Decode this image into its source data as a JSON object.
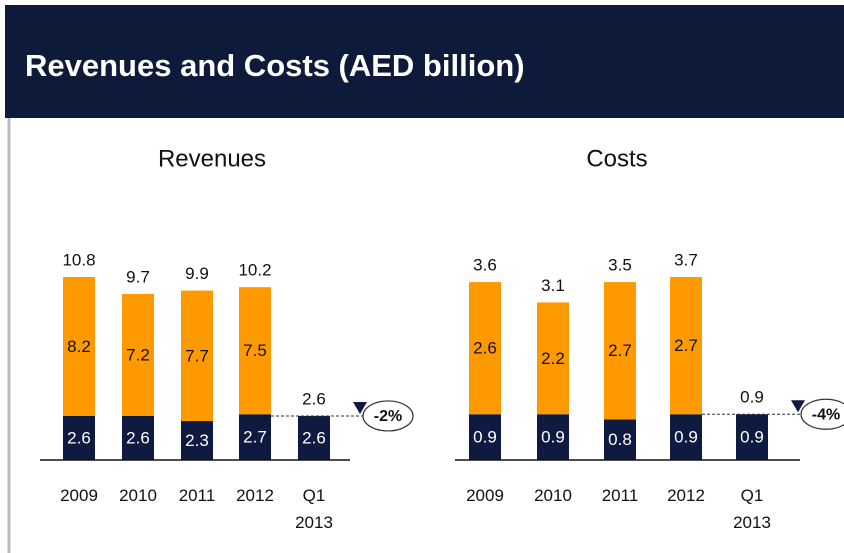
{
  "title": "Revenues and Costs (AED billion)",
  "chart_data": [
    {
      "type": "bar",
      "stacked": true,
      "title": "Revenues",
      "categories": [
        "2009",
        "2010",
        "2011",
        "2012",
        "Q1 2013"
      ],
      "series": [
        {
          "color": "#0e1a40",
          "values": [
            2.6,
            2.6,
            2.3,
            2.7,
            2.6
          ]
        },
        {
          "color": "#ff9900",
          "values": [
            8.2,
            7.2,
            7.7,
            7.5,
            null
          ]
        }
      ],
      "totals": [
        10.8,
        9.7,
        9.9,
        10.2,
        2.6
      ],
      "annotation": "-2%"
    },
    {
      "type": "bar",
      "stacked": true,
      "title": "Costs",
      "categories": [
        "2009",
        "2010",
        "2011",
        "2012",
        "Q1 2013"
      ],
      "series": [
        {
          "color": "#0e1a40",
          "values": [
            0.9,
            0.9,
            0.8,
            0.9,
            0.9
          ]
        },
        {
          "color": "#ff9900",
          "values": [
            2.6,
            2.2,
            2.7,
            2.7,
            null
          ]
        }
      ],
      "totals": [
        3.6,
        3.1,
        3.5,
        3.7,
        0.9
      ],
      "annotation": "-4%"
    }
  ]
}
